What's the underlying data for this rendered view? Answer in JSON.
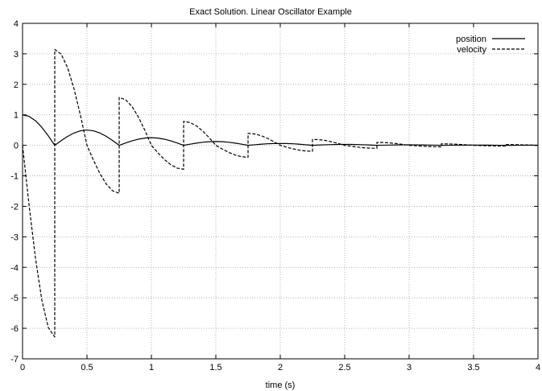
{
  "chart_data": {
    "type": "line",
    "title": "Exact Solution. Linear Oscillator Example",
    "xlabel": "time (s)",
    "ylabel": "",
    "xlim": [
      0,
      4
    ],
    "ylim": [
      -7,
      4
    ],
    "xticks": [
      "0",
      "0.5",
      "1",
      "1.5",
      "2",
      "2.5",
      "3",
      "3.5",
      "4"
    ],
    "yticks": [
      "-7",
      "-6",
      "-5",
      "-4",
      "-3",
      "-2",
      "-1",
      "0",
      "1",
      "2",
      "3",
      "4"
    ],
    "grid": true,
    "legend_position": "top-right",
    "colors": {
      "axes": "#000000",
      "grid": "#a0a0a0",
      "line": "#000000"
    },
    "series": [
      {
        "name": "position",
        "style": "solid",
        "x": [
          0,
          0.05,
          0.1,
          0.15,
          0.2,
          0.25,
          0.3,
          0.35,
          0.4,
          0.45,
          0.5,
          0.55,
          0.6,
          0.65,
          0.7,
          0.75,
          0.8,
          0.85,
          0.9,
          0.95,
          1.0,
          1.05,
          1.1,
          1.15,
          1.2,
          1.25,
          1.3,
          1.35,
          1.4,
          1.45,
          1.5,
          1.55,
          1.6,
          1.65,
          1.7,
          1.75,
          1.8,
          1.85,
          1.9,
          1.95,
          2.0,
          2.05,
          2.1,
          2.15,
          2.2,
          2.25,
          2.3,
          2.35,
          2.4,
          2.45,
          2.5,
          2.55,
          2.6,
          2.65,
          2.7,
          2.75,
          2.8,
          2.85,
          2.9,
          2.95,
          3.0,
          3.05,
          3.1,
          3.15,
          3.2,
          3.25,
          3.3,
          3.35,
          3.4,
          3.45,
          3.5,
          3.55,
          3.6,
          3.65,
          3.7,
          3.75,
          3.8,
          3.85,
          3.9,
          3.95,
          4.0
        ],
        "y": [
          1.0,
          0.951,
          0.809,
          0.588,
          0.309,
          0.0,
          0.155,
          0.294,
          0.405,
          0.476,
          0.5,
          0.476,
          0.405,
          0.294,
          0.155,
          0.0,
          0.077,
          0.147,
          0.202,
          0.238,
          0.25,
          0.238,
          0.202,
          0.147,
          0.077,
          0.0,
          0.039,
          0.073,
          0.101,
          0.119,
          0.125,
          0.119,
          0.101,
          0.073,
          0.039,
          0.0,
          0.019,
          0.037,
          0.051,
          0.059,
          0.062,
          0.059,
          0.051,
          0.037,
          0.019,
          0.0,
          0.01,
          0.018,
          0.025,
          0.03,
          0.031,
          0.03,
          0.025,
          0.018,
          0.01,
          0.0,
          0.005,
          0.009,
          0.013,
          0.015,
          0.016,
          0.015,
          0.013,
          0.009,
          0.005,
          0.0,
          0.002,
          0.005,
          0.006,
          0.007,
          0.008,
          0.007,
          0.006,
          0.005,
          0.002,
          0.0,
          0.001,
          0.002,
          0.003,
          0.004,
          0.004
        ]
      },
      {
        "name": "velocity",
        "style": "dashed",
        "x": [
          0,
          0.05,
          0.1,
          0.15,
          0.2,
          0.25,
          0.25,
          0.3,
          0.35,
          0.4,
          0.45,
          0.5,
          0.55,
          0.6,
          0.65,
          0.7,
          0.75,
          0.75,
          0.8,
          0.85,
          0.9,
          0.95,
          1.0,
          1.05,
          1.1,
          1.15,
          1.2,
          1.25,
          1.25,
          1.3,
          1.35,
          1.4,
          1.45,
          1.5,
          1.55,
          1.6,
          1.65,
          1.7,
          1.75,
          1.75,
          1.8,
          1.85,
          1.9,
          1.95,
          2.0,
          2.05,
          2.1,
          2.15,
          2.2,
          2.25,
          2.25,
          2.3,
          2.35,
          2.4,
          2.45,
          2.5,
          2.55,
          2.6,
          2.65,
          2.7,
          2.75,
          2.75,
          2.8,
          2.85,
          2.9,
          2.95,
          3.0,
          3.05,
          3.1,
          3.15,
          3.2,
          3.25,
          3.25,
          3.3,
          3.35,
          3.4,
          3.45,
          3.5,
          3.55,
          3.6,
          3.65,
          3.7,
          3.75,
          3.75,
          3.8,
          3.85,
          3.9,
          3.95,
          4.0
        ],
        "y": [
          0.0,
          -1.942,
          -3.693,
          -5.083,
          -5.976,
          -6.283,
          3.142,
          2.988,
          2.542,
          1.847,
          0.971,
          0.0,
          -0.485,
          -0.923,
          -1.271,
          -1.494,
          -1.571,
          1.571,
          1.494,
          1.271,
          0.923,
          0.485,
          0.0,
          -0.243,
          -0.462,
          -0.635,
          -0.747,
          -0.785,
          0.785,
          0.747,
          0.635,
          0.462,
          0.243,
          0.0,
          -0.121,
          -0.231,
          -0.318,
          -0.373,
          -0.393,
          0.393,
          0.373,
          0.318,
          0.231,
          0.121,
          0.0,
          -0.061,
          -0.115,
          -0.159,
          -0.187,
          -0.196,
          0.196,
          0.187,
          0.159,
          0.115,
          0.061,
          0.0,
          -0.03,
          -0.058,
          -0.079,
          -0.093,
          -0.098,
          0.098,
          0.093,
          0.079,
          0.058,
          0.03,
          0.0,
          -0.015,
          -0.029,
          -0.04,
          -0.047,
          -0.049,
          0.049,
          0.047,
          0.04,
          0.029,
          0.015,
          0.0,
          -0.008,
          -0.014,
          -0.02,
          -0.023,
          -0.025,
          0.025,
          0.023,
          0.02,
          0.014,
          0.008,
          0.0
        ]
      }
    ]
  }
}
